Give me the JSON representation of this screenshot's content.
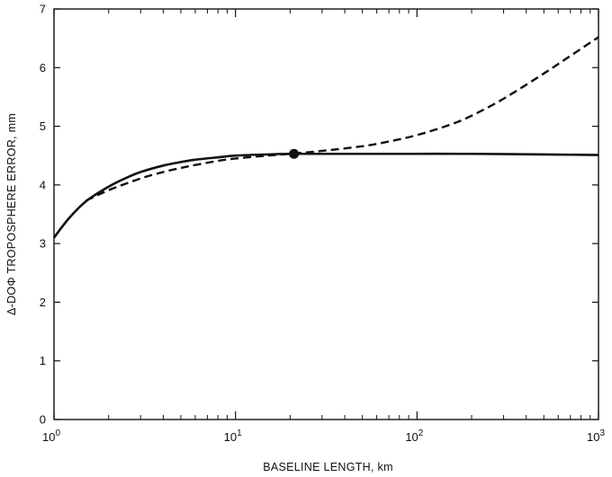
{
  "chart_data": {
    "type": "line",
    "x_scale": "log",
    "xlabel": "BASELINE LENGTH, km",
    "ylabel": "Δ-DOΦ TROPOSPHERE ERROR, mm",
    "xlim": [
      1,
      1000
    ],
    "ylim": [
      0,
      7
    ],
    "x_ticks": [
      {
        "base": "10",
        "exp": "0",
        "value": 1
      },
      {
        "base": "10",
        "exp": "1",
        "value": 10
      },
      {
        "base": "10",
        "exp": "2",
        "value": 100
      },
      {
        "base": "10",
        "exp": "3",
        "value": 1000
      }
    ],
    "y_ticks": [
      "0",
      "1",
      "2",
      "3",
      "4",
      "5",
      "6",
      "7"
    ],
    "grid": false,
    "series": [
      {
        "style": "solid",
        "x": [
          1,
          1.2,
          1.5,
          2,
          2.5,
          3,
          4,
          5,
          6,
          8,
          10,
          15,
          20,
          30,
          50,
          100,
          200,
          500,
          1000
        ],
        "y": [
          3.1,
          3.42,
          3.72,
          3.97,
          4.12,
          4.22,
          4.33,
          4.39,
          4.43,
          4.47,
          4.5,
          4.52,
          4.53,
          4.53,
          4.53,
          4.53,
          4.53,
          4.52,
          4.51
        ]
      },
      {
        "style": "dashed",
        "x": [
          1.5,
          2,
          3,
          4,
          5,
          6,
          8,
          10,
          15,
          20,
          30,
          50,
          70,
          100,
          150,
          200,
          300,
          500,
          700,
          1000
        ],
        "y": [
          3.73,
          3.91,
          4.11,
          4.22,
          4.29,
          4.34,
          4.41,
          4.45,
          4.5,
          4.53,
          4.58,
          4.66,
          4.74,
          4.85,
          5.02,
          5.18,
          5.47,
          5.9,
          6.2,
          6.52
        ]
      }
    ],
    "markers": [
      {
        "x": 21,
        "y": 4.53
      }
    ]
  }
}
